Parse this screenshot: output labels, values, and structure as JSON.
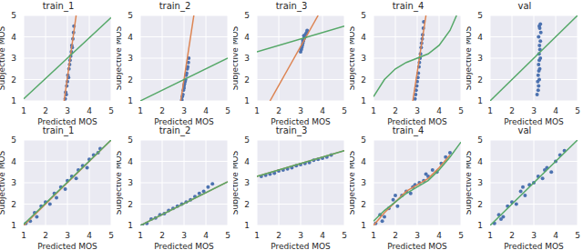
{
  "chart_data": [
    {
      "type": "scatter",
      "title": "train_1",
      "x_label": "Predicted MOS",
      "y_label": "Subjective MOS",
      "xlim": [
        1,
        5
      ],
      "ylim": [
        1,
        5
      ],
      "xticks": [
        1,
        2,
        3,
        4,
        5
      ],
      "yticks": [
        1,
        2,
        3,
        4,
        5
      ],
      "grid": true,
      "series": [
        {
          "type": "scatter",
          "color": "#4c72b0",
          "marker": "circle",
          "x": [
            2.9,
            2.92,
            2.95,
            2.97,
            3.0,
            3.02,
            3.05,
            3.07,
            3.1,
            3.12,
            3.15,
            3.18,
            3.2,
            3.22,
            3.25,
            3.28,
            3.3
          ],
          "values": [
            1.1,
            1.4,
            1.3,
            1.7,
            1.9,
            2.2,
            2.1,
            2.5,
            2.7,
            2.9,
            3.1,
            3.3,
            3.6,
            3.5,
            3.9,
            4.2,
            4.5
          ]
        },
        {
          "type": "line",
          "color": "#dd8452",
          "line_style": "solid",
          "x": [
            2.85,
            3.4
          ],
          "values": [
            1,
            5
          ]
        },
        {
          "type": "line",
          "color": "#55a868",
          "line_style": "solid",
          "x": [
            1,
            5
          ],
          "values": [
            1.1,
            4.9
          ]
        }
      ]
    },
    {
      "type": "scatter",
      "title": "train_2",
      "x_label": "Predicted MOS",
      "y_label": "Subjective MOS",
      "xlim": [
        1,
        5
      ],
      "ylim": [
        1,
        5
      ],
      "xticks": [
        1,
        2,
        3,
        4,
        5
      ],
      "yticks": [
        1,
        2,
        3,
        4,
        5
      ],
      "grid": true,
      "series": [
        {
          "type": "scatter",
          "color": "#4c72b0",
          "marker": "circle",
          "x": [
            2.9,
            2.92,
            2.95,
            2.97,
            3.0,
            3.0,
            3.02,
            3.05,
            3.07,
            3.1,
            3.12,
            3.15,
            3.17,
            3.2,
            3.22
          ],
          "values": [
            1.05,
            1.2,
            1.3,
            1.5,
            1.6,
            1.7,
            1.8,
            1.9,
            2.0,
            2.2,
            2.3,
            2.5,
            2.6,
            2.8,
            3.0
          ]
        },
        {
          "type": "line",
          "color": "#dd8452",
          "line_style": "solid",
          "x": [
            2.85,
            3.45
          ],
          "values": [
            1,
            5
          ]
        },
        {
          "type": "line",
          "color": "#55a868",
          "line_style": "solid",
          "x": [
            1,
            5
          ],
          "values": [
            1,
            3.0
          ]
        }
      ]
    },
    {
      "type": "scatter",
      "title": "train_3",
      "x_label": "Predicted MOS",
      "y_label": "Subjective MOS",
      "xlim": [
        1,
        5
      ],
      "ylim": [
        1,
        5
      ],
      "xticks": [
        1,
        2,
        3,
        4,
        5
      ],
      "yticks": [
        1,
        2,
        3,
        4,
        5
      ],
      "grid": true,
      "series": [
        {
          "type": "scatter",
          "color": "#4c72b0",
          "marker": "circle",
          "x": [
            3.0,
            3.03,
            3.05,
            3.08,
            3.1,
            3.12,
            3.15,
            3.17,
            3.2,
            3.22,
            3.25,
            3.28,
            3.3,
            3.15,
            3.1
          ],
          "values": [
            3.3,
            3.4,
            3.5,
            3.6,
            3.7,
            3.8,
            3.9,
            3.95,
            4.0,
            4.1,
            4.15,
            4.2,
            4.3,
            4.05,
            3.85
          ]
        },
        {
          "type": "line",
          "color": "#dd8452",
          "line_style": "solid",
          "x": [
            1.6,
            3.8
          ],
          "values": [
            1,
            5
          ]
        },
        {
          "type": "line",
          "color": "#55a868",
          "line_style": "solid",
          "x": [
            1,
            5
          ],
          "values": [
            3.3,
            4.5
          ]
        }
      ]
    },
    {
      "type": "scatter",
      "title": "train_4",
      "x_label": "Predicted MOS",
      "y_label": "Subjective MOS",
      "xlim": [
        1,
        5
      ],
      "ylim": [
        1,
        5
      ],
      "xticks": [
        1,
        2,
        3,
        4,
        5
      ],
      "yticks": [
        1,
        2,
        3,
        4,
        5
      ],
      "grid": true,
      "series": [
        {
          "type": "scatter",
          "color": "#4c72b0",
          "marker": "circle",
          "x": [
            2.9,
            2.93,
            2.95,
            2.98,
            3.0,
            3.03,
            3.05,
            3.08,
            3.1,
            3.13,
            3.15,
            3.18,
            3.2,
            3.23,
            3.25,
            3.28,
            3.3
          ],
          "values": [
            1.1,
            1.3,
            1.5,
            1.7,
            1.9,
            2.1,
            2.3,
            2.6,
            2.8,
            3.0,
            3.2,
            3.5,
            3.7,
            3.9,
            4.1,
            4.4,
            4.7
          ]
        },
        {
          "type": "line",
          "color": "#dd8452",
          "line_style": "solid",
          "x": [
            2.8,
            3.4
          ],
          "values": [
            1,
            5
          ]
        },
        {
          "type": "line",
          "color": "#55a868",
          "line_style": "solid",
          "x": [
            1,
            1.5,
            2,
            2.5,
            3,
            3.5,
            4,
            4.5,
            4.8
          ],
          "values": [
            1.2,
            2.0,
            2.5,
            2.8,
            3.0,
            3.2,
            3.6,
            4.3,
            5.0
          ]
        }
      ]
    },
    {
      "type": "scatter",
      "title": "val",
      "x_label": "Predicted MOS",
      "y_label": "Subjective MOS",
      "xlim": [
        1,
        5
      ],
      "ylim": [
        1,
        5
      ],
      "xticks": [
        1,
        2,
        3,
        4,
        5
      ],
      "yticks": [
        1,
        2,
        3,
        4,
        5
      ],
      "grid": true,
      "series": [
        {
          "type": "scatter",
          "color": "#4c72b0",
          "marker": "circle",
          "x": [
            3.15,
            3.2,
            3.22,
            3.18,
            3.25,
            3.2,
            3.23,
            3.27,
            3.22,
            3.25,
            3.3,
            3.24,
            3.28,
            3.26,
            3.3,
            3.22,
            3.32,
            3.27,
            3.25,
            3.3
          ],
          "values": [
            1.3,
            1.5,
            1.7,
            1.9,
            2.0,
            2.2,
            2.4,
            2.5,
            2.7,
            2.9,
            3.0,
            3.2,
            3.4,
            3.6,
            3.8,
            4.0,
            4.2,
            4.4,
            4.5,
            4.6
          ]
        },
        {
          "type": "line",
          "color": "#55a868",
          "line_style": "solid",
          "x": [
            1,
            5
          ],
          "values": [
            1,
            5
          ]
        }
      ]
    },
    {
      "type": "scatter",
      "title": "train_1",
      "x_label": "Predicted MOS",
      "y_label": "Subjective MOS",
      "xlim": [
        1,
        5
      ],
      "ylim": [
        1,
        5
      ],
      "xticks": [
        1,
        2,
        3,
        4,
        5
      ],
      "yticks": [
        1,
        2,
        3,
        4,
        5
      ],
      "grid": true,
      "series": [
        {
          "type": "scatter",
          "color": "#4c72b0",
          "marker": "circle",
          "x": [
            1.1,
            1.3,
            1.5,
            1.6,
            1.8,
            2.0,
            2.2,
            2.4,
            2.5,
            2.7,
            2.9,
            3.0,
            3.2,
            3.4,
            3.5,
            3.7,
            3.9,
            4.0,
            4.2,
            4.4,
            4.5
          ],
          "values": [
            1.1,
            1.2,
            1.6,
            1.4,
            1.9,
            2.1,
            2.0,
            2.5,
            2.3,
            2.8,
            2.7,
            3.1,
            3.3,
            3.2,
            3.6,
            3.8,
            3.7,
            4.1,
            4.3,
            4.4,
            4.6
          ]
        },
        {
          "type": "line",
          "color": "#dd8452",
          "line_style": "solid",
          "x": [
            1,
            5
          ],
          "values": [
            1.0,
            5.0
          ]
        },
        {
          "type": "line",
          "color": "#55a868",
          "line_style": "solid",
          "x": [
            1,
            5
          ],
          "values": [
            1.05,
            5.0
          ]
        }
      ]
    },
    {
      "type": "scatter",
      "title": "train_2",
      "x_label": "Predicted MOS",
      "y_label": "Subjective MOS",
      "xlim": [
        1,
        5
      ],
      "ylim": [
        1,
        5
      ],
      "xticks": [
        1,
        2,
        3,
        4,
        5
      ],
      "yticks": [
        1,
        2,
        3,
        4,
        5
      ],
      "grid": true,
      "series": [
        {
          "type": "scatter",
          "color": "#4c72b0",
          "marker": "circle",
          "x": [
            1.1,
            1.3,
            1.5,
            1.7,
            1.9,
            2.1,
            2.3,
            2.5,
            2.7,
            2.9,
            3.1,
            3.3,
            3.5,
            3.7,
            3.9,
            4.1,
            4.3
          ],
          "values": [
            1.0,
            1.1,
            1.3,
            1.35,
            1.5,
            1.55,
            1.7,
            1.8,
            1.9,
            2.0,
            2.1,
            2.2,
            2.35,
            2.5,
            2.6,
            2.8,
            2.95
          ]
        },
        {
          "type": "line",
          "color": "#dd8452",
          "line_style": "solid",
          "x": [
            1,
            5
          ],
          "values": [
            1.0,
            3.05
          ]
        },
        {
          "type": "line",
          "color": "#55a868",
          "line_style": "solid",
          "x": [
            1,
            5
          ],
          "values": [
            1.0,
            3.05
          ]
        }
      ]
    },
    {
      "type": "scatter",
      "title": "train_3",
      "x_label": "Predicted MOS",
      "y_label": "Subjective MOS",
      "xlim": [
        1,
        5
      ],
      "ylim": [
        1,
        5
      ],
      "xticks": [
        1,
        2,
        3,
        4,
        5
      ],
      "yticks": [
        1,
        2,
        3,
        4,
        5
      ],
      "grid": true,
      "series": [
        {
          "type": "scatter",
          "color": "#4c72b0",
          "marker": "circle",
          "x": [
            1.2,
            1.4,
            1.6,
            1.8,
            2.0,
            2.2,
            2.4,
            2.6,
            2.8,
            3.0,
            3.2,
            3.4,
            3.6,
            3.8,
            4.0,
            4.2,
            4.4
          ],
          "values": [
            3.3,
            3.35,
            3.4,
            3.45,
            3.55,
            3.6,
            3.65,
            3.7,
            3.8,
            3.85,
            3.9,
            3.95,
            4.05,
            4.1,
            4.15,
            4.2,
            4.3
          ]
        },
        {
          "type": "line",
          "color": "#dd8452",
          "line_style": "solid",
          "x": [
            1,
            5
          ],
          "values": [
            3.3,
            4.5
          ]
        },
        {
          "type": "line",
          "color": "#55a868",
          "line_style": "solid",
          "x": [
            1,
            5
          ],
          "values": [
            3.3,
            4.5
          ]
        }
      ]
    },
    {
      "type": "scatter",
      "title": "train_4",
      "x_label": "Predicted MOS",
      "y_label": "Subjective MOS",
      "xlim": [
        1,
        5
      ],
      "ylim": [
        1,
        5
      ],
      "xticks": [
        1,
        2,
        3,
        4,
        5
      ],
      "yticks": [
        1,
        2,
        3,
        4,
        5
      ],
      "grid": true,
      "series": [
        {
          "type": "scatter",
          "color": "#4c72b0",
          "marker": "circle",
          "x": [
            1.1,
            1.3,
            1.5,
            1.7,
            1.9,
            2.1,
            2.3,
            2.5,
            2.7,
            2.9,
            3.1,
            3.3,
            3.5,
            3.7,
            3.9,
            4.1,
            4.3,
            4.5,
            1.4,
            2.0,
            2.8,
            3.4
          ],
          "values": [
            1.1,
            1.5,
            1.4,
            1.8,
            2.2,
            1.9,
            2.4,
            2.6,
            2.5,
            2.9,
            3.0,
            3.1,
            3.3,
            3.6,
            3.5,
            3.9,
            4.2,
            4.4,
            1.2,
            2.4,
            2.8,
            3.4
          ]
        },
        {
          "type": "line",
          "color": "#dd8452",
          "line_style": "solid",
          "x": [
            1,
            1.5,
            2,
            2.5,
            3,
            3.5,
            4,
            4.5
          ],
          "values": [
            1.0,
            1.6,
            2.1,
            2.6,
            2.9,
            3.2,
            3.7,
            4.3
          ]
        },
        {
          "type": "line",
          "color": "#55a868",
          "line_style": "solid",
          "x": [
            1,
            1.5,
            2,
            2.5,
            3,
            3.5,
            4,
            4.5,
            5
          ],
          "values": [
            1.2,
            1.7,
            2.1,
            2.5,
            2.8,
            3.1,
            3.6,
            4.2,
            4.9
          ]
        }
      ]
    },
    {
      "type": "scatter",
      "title": "val",
      "x_label": "Predicted MOS",
      "y_label": "Subjective MOS",
      "xlim": [
        1,
        5
      ],
      "ylim": [
        1,
        5
      ],
      "xticks": [
        1,
        2,
        3,
        4,
        5
      ],
      "yticks": [
        1,
        2,
        3,
        4,
        5
      ],
      "grid": true,
      "series": [
        {
          "type": "scatter",
          "color": "#4c72b0",
          "marker": "circle",
          "x": [
            1.2,
            1.4,
            1.6,
            1.8,
            2.0,
            2.2,
            2.4,
            2.6,
            2.8,
            3.0,
            3.2,
            3.4,
            3.6,
            3.8,
            4.0,
            4.2,
            4.4,
            1.5,
            2.5,
            3.5
          ],
          "values": [
            1.1,
            1.5,
            1.4,
            1.9,
            2.1,
            2.0,
            2.6,
            2.4,
            2.9,
            3.0,
            3.3,
            3.2,
            3.7,
            3.5,
            4.0,
            4.3,
            4.5,
            1.3,
            2.8,
            3.6
          ]
        },
        {
          "type": "line",
          "color": "#55a868",
          "line_style": "solid",
          "x": [
            1,
            5
          ],
          "values": [
            1,
            5
          ]
        }
      ]
    }
  ]
}
